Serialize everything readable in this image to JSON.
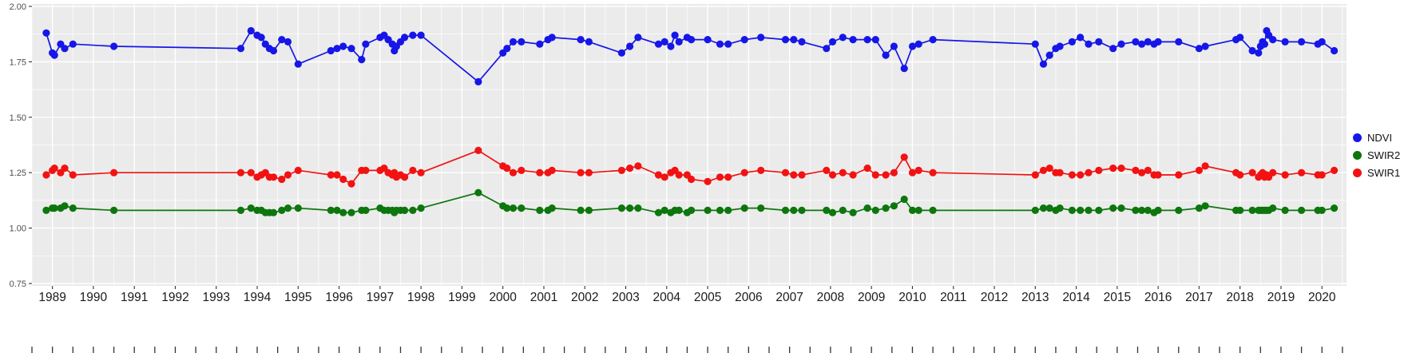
{
  "figure": {
    "panel_background": "#EBEBEB",
    "grid_color": "#FFFFFF",
    "axis_text_color": "#4D4D4D",
    "x_text_color": "#1A1A1A",
    "tick_color": "#333333"
  },
  "legend": {
    "items": [
      {
        "label": "NDVI",
        "color": "#1616E8"
      },
      {
        "label": "SWIR2",
        "color": "#0D760D"
      },
      {
        "label": "SWIR1",
        "color": "#F21212"
      }
    ]
  },
  "chart_data": {
    "type": "line",
    "title": "",
    "xlabel": "",
    "ylabel": "",
    "xlim": [
      1988.5,
      2020.6
    ],
    "ylim": [
      0.75,
      2.0
    ],
    "grid": true,
    "legend_position": "right",
    "x_ticks": [
      1989,
      1990,
      1991,
      1992,
      1993,
      1994,
      1995,
      1996,
      1997,
      1998,
      1999,
      2000,
      2001,
      2002,
      2003,
      2004,
      2005,
      2006,
      2007,
      2008,
      2009,
      2010,
      2011,
      2012,
      2013,
      2014,
      2015,
      2016,
      2017,
      2018,
      2019,
      2020
    ],
    "y_ticks": [
      0.75,
      1.0,
      1.25,
      1.5,
      1.75,
      2.0
    ],
    "y_tick_labels": [
      "0.75",
      "1.00",
      "1.25",
      "1.50",
      "1.75",
      "2.00"
    ],
    "y_minor_ticks": [
      0.875,
      1.125,
      1.375,
      1.625,
      1.875
    ],
    "x": [
      1988.85,
      1989.0,
      1989.05,
      1989.2,
      1989.3,
      1989.5,
      1990.5,
      1993.6,
      1993.85,
      1994.0,
      1994.1,
      1994.2,
      1994.3,
      1994.4,
      1994.6,
      1994.75,
      1995.0,
      1995.8,
      1995.95,
      1996.1,
      1996.3,
      1996.55,
      1996.65,
      1997.0,
      1997.1,
      1997.2,
      1997.3,
      1997.35,
      1997.4,
      1997.5,
      1997.6,
      1997.8,
      1998.0,
      1999.4,
      2000.0,
      2000.1,
      2000.25,
      2000.45,
      2000.9,
      2001.1,
      2001.2,
      2001.9,
      2002.1,
      2002.9,
      2003.1,
      2003.3,
      2003.8,
      2003.95,
      2004.1,
      2004.2,
      2004.3,
      2004.5,
      2004.6,
      2005.0,
      2005.3,
      2005.5,
      2005.9,
      2006.3,
      2006.9,
      2007.1,
      2007.3,
      2007.9,
      2008.05,
      2008.3,
      2008.55,
      2008.9,
      2009.1,
      2009.35,
      2009.55,
      2009.8,
      2010.0,
      2010.15,
      2010.5,
      2013.0,
      2013.2,
      2013.35,
      2013.5,
      2013.6,
      2013.9,
      2014.1,
      2014.3,
      2014.55,
      2014.9,
      2015.1,
      2015.45,
      2015.6,
      2015.75,
      2015.9,
      2016.0,
      2016.5,
      2017.0,
      2017.15,
      2017.9,
      2018.0,
      2018.3,
      2018.45,
      2018.5,
      2018.55,
      2018.6,
      2018.65,
      2018.7,
      2018.8,
      2019.1,
      2019.5,
      2019.9,
      2020.0,
      2020.3
    ],
    "series": [
      {
        "name": "NDVI",
        "color": "#1616E8",
        "values": [
          1.88,
          1.79,
          1.78,
          1.83,
          1.81,
          1.83,
          1.82,
          1.81,
          1.89,
          1.87,
          1.86,
          1.83,
          1.81,
          1.8,
          1.85,
          1.84,
          1.74,
          1.8,
          1.81,
          1.82,
          1.81,
          1.76,
          1.83,
          1.86,
          1.87,
          1.85,
          1.83,
          1.8,
          1.82,
          1.84,
          1.86,
          1.87,
          1.87,
          1.66,
          1.79,
          1.81,
          1.84,
          1.84,
          1.83,
          1.85,
          1.86,
          1.85,
          1.84,
          1.79,
          1.82,
          1.86,
          1.83,
          1.84,
          1.82,
          1.87,
          1.84,
          1.86,
          1.85,
          1.85,
          1.83,
          1.83,
          1.85,
          1.86,
          1.85,
          1.85,
          1.84,
          1.81,
          1.84,
          1.86,
          1.85,
          1.85,
          1.85,
          1.78,
          1.82,
          1.72,
          1.82,
          1.83,
          1.85,
          1.83,
          1.74,
          1.78,
          1.81,
          1.82,
          1.84,
          1.86,
          1.83,
          1.84,
          1.81,
          1.83,
          1.84,
          1.83,
          1.84,
          1.83,
          1.84,
          1.84,
          1.81,
          1.82,
          1.85,
          1.86,
          1.8,
          1.79,
          1.82,
          1.84,
          1.83,
          1.89,
          1.87,
          1.85,
          1.84,
          1.84,
          1.83,
          1.84,
          1.8
        ]
      },
      {
        "name": "SWIR2",
        "color": "#0D760D",
        "values": [
          1.08,
          1.09,
          1.09,
          1.09,
          1.1,
          1.09,
          1.08,
          1.08,
          1.09,
          1.08,
          1.08,
          1.07,
          1.07,
          1.07,
          1.08,
          1.09,
          1.09,
          1.08,
          1.08,
          1.07,
          1.07,
          1.08,
          1.08,
          1.09,
          1.08,
          1.08,
          1.08,
          1.07,
          1.08,
          1.08,
          1.08,
          1.08,
          1.09,
          1.16,
          1.1,
          1.09,
          1.09,
          1.09,
          1.08,
          1.08,
          1.09,
          1.08,
          1.08,
          1.09,
          1.09,
          1.09,
          1.07,
          1.08,
          1.07,
          1.08,
          1.08,
          1.07,
          1.08,
          1.08,
          1.08,
          1.08,
          1.09,
          1.09,
          1.08,
          1.08,
          1.08,
          1.08,
          1.07,
          1.08,
          1.07,
          1.09,
          1.08,
          1.09,
          1.1,
          1.13,
          1.08,
          1.08,
          1.08,
          1.08,
          1.09,
          1.09,
          1.08,
          1.09,
          1.08,
          1.08,
          1.08,
          1.08,
          1.09,
          1.09,
          1.08,
          1.08,
          1.08,
          1.07,
          1.08,
          1.08,
          1.09,
          1.1,
          1.08,
          1.08,
          1.08,
          1.08,
          1.08,
          1.08,
          1.08,
          1.08,
          1.08,
          1.09,
          1.08,
          1.08,
          1.08,
          1.08,
          1.09
        ]
      },
      {
        "name": "SWIR1",
        "color": "#F21212",
        "values": [
          1.24,
          1.26,
          1.27,
          1.25,
          1.27,
          1.24,
          1.25,
          1.25,
          1.25,
          1.23,
          1.24,
          1.25,
          1.23,
          1.23,
          1.22,
          1.24,
          1.26,
          1.24,
          1.24,
          1.22,
          1.2,
          1.26,
          1.26,
          1.26,
          1.27,
          1.25,
          1.24,
          1.25,
          1.23,
          1.24,
          1.23,
          1.26,
          1.25,
          1.35,
          1.28,
          1.27,
          1.25,
          1.26,
          1.25,
          1.25,
          1.26,
          1.25,
          1.25,
          1.26,
          1.27,
          1.28,
          1.24,
          1.23,
          1.25,
          1.26,
          1.24,
          1.24,
          1.22,
          1.21,
          1.23,
          1.23,
          1.25,
          1.26,
          1.25,
          1.24,
          1.24,
          1.26,
          1.24,
          1.25,
          1.24,
          1.27,
          1.24,
          1.24,
          1.25,
          1.32,
          1.25,
          1.26,
          1.25,
          1.24,
          1.26,
          1.27,
          1.25,
          1.25,
          1.24,
          1.24,
          1.25,
          1.26,
          1.27,
          1.27,
          1.26,
          1.25,
          1.26,
          1.24,
          1.24,
          1.24,
          1.26,
          1.28,
          1.25,
          1.24,
          1.25,
          1.23,
          1.24,
          1.25,
          1.23,
          1.24,
          1.23,
          1.25,
          1.24,
          1.25,
          1.24,
          1.24,
          1.26
        ]
      }
    ]
  }
}
